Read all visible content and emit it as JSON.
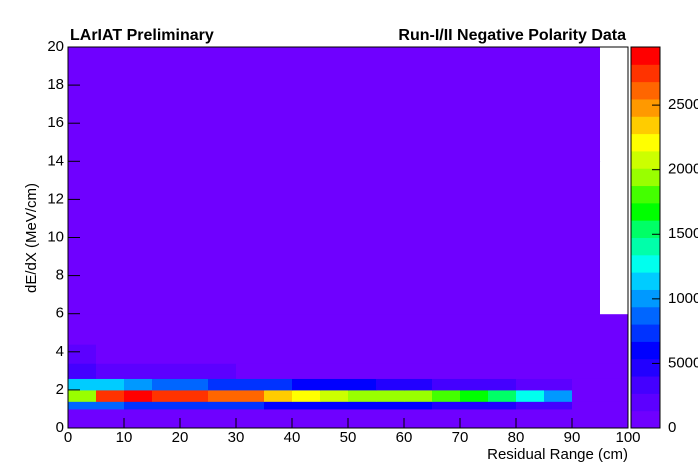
{
  "chart_data": {
    "type": "heatmap",
    "title": "LArIAT Preliminary",
    "subtitle": "Run-I/II Negative Polarity Data",
    "x_label": "Residual Range (cm)",
    "y_label": "dE/dX (MeV/cm)",
    "xbins": [
      0,
      5,
      10,
      15,
      20,
      25,
      30,
      35,
      40,
      45,
      50,
      55,
      60,
      65,
      70,
      75,
      80,
      85,
      90,
      95,
      100
    ],
    "ybins": [
      0,
      1,
      1.4,
      2,
      2.6,
      3.4,
      4.4,
      6,
      10,
      14,
      20
    ],
    "z": [
      [
        300,
        300,
        300,
        300,
        300,
        300,
        300,
        300,
        300,
        300,
        300,
        300,
        300,
        300,
        300,
        300,
        300,
        300,
        100,
        50
      ],
      [
        9000,
        9000,
        8000,
        8000,
        7500,
        7000,
        7000,
        6500,
        6500,
        6000,
        6000,
        5500,
        5500,
        5000,
        5000,
        4500,
        4000,
        3000,
        200,
        50
      ],
      [
        20000,
        28000,
        28500,
        28000,
        27000,
        26500,
        25500,
        24000,
        22000,
        21000,
        20000,
        19500,
        19000,
        18000,
        17000,
        15000,
        13000,
        10000,
        300,
        100
      ],
      [
        12000,
        11000,
        10000,
        9000,
        8500,
        8000,
        7500,
        7000,
        6500,
        6000,
        5500,
        5000,
        4500,
        4000,
        3500,
        3000,
        2500,
        1500,
        200,
        80
      ],
      [
        3000,
        2500,
        2000,
        1800,
        1600,
        1500,
        1300,
        1200,
        1100,
        1000,
        900,
        800,
        700,
        600,
        500,
        400,
        300,
        200,
        100,
        30
      ],
      [
        1500,
        1200,
        1000,
        900,
        800,
        700,
        650,
        600,
        550,
        500,
        450,
        400,
        350,
        300,
        280,
        260,
        240,
        220,
        60,
        20
      ],
      [
        600,
        550,
        500,
        480,
        460,
        440,
        420,
        400,
        380,
        360,
        340,
        320,
        300,
        300,
        300,
        300,
        300,
        300,
        50,
        10
      ],
      [
        400,
        400,
        400,
        400,
        400,
        400,
        400,
        400,
        400,
        400,
        400,
        400,
        400,
        400,
        400,
        400,
        400,
        300,
        40,
        0
      ],
      [
        350,
        350,
        350,
        350,
        350,
        350,
        350,
        350,
        350,
        350,
        350,
        350,
        350,
        350,
        350,
        350,
        350,
        250,
        30,
        0
      ],
      [
        300,
        300,
        300,
        300,
        300,
        300,
        300,
        300,
        300,
        300,
        300,
        300,
        300,
        300,
        300,
        300,
        300,
        200,
        20,
        0
      ]
    ],
    "xlim": [
      0,
      100
    ],
    "ylim": [
      0,
      20
    ],
    "zlim": [
      0,
      29500
    ],
    "xticks": [
      0,
      10,
      20,
      30,
      40,
      50,
      60,
      70,
      80,
      90,
      100
    ],
    "yticks": [
      0,
      2,
      4,
      6,
      8,
      10,
      12,
      14,
      16,
      18,
      20
    ],
    "zticks": [
      0,
      5000,
      10000,
      15000,
      20000,
      25000
    ],
    "palette": [
      "#6f00ff",
      "#5c00ff",
      "#4400ff",
      "#2200ff",
      "#0000ff",
      "#0033ff",
      "#0066ff",
      "#0099ff",
      "#00ccff",
      "#00ffee",
      "#00ffaa",
      "#00ff66",
      "#00ff00",
      "#44ff00",
      "#99ff00",
      "#ccff00",
      "#ffff00",
      "#ffcc00",
      "#ff9900",
      "#ff6600",
      "#ff3300",
      "#ff0000"
    ]
  }
}
